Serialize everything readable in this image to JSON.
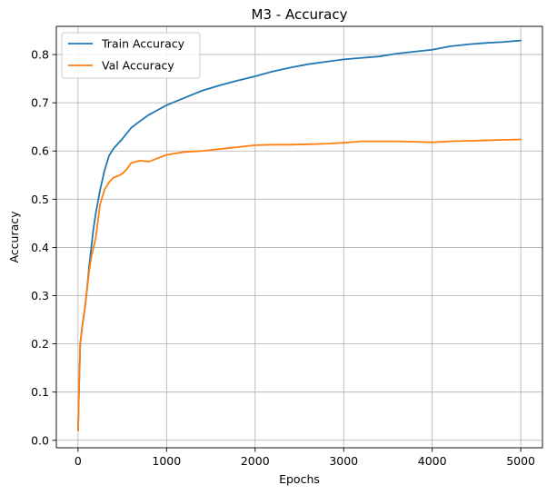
{
  "chart_data": {
    "type": "line",
    "title": "M3 - Accuracy",
    "xlabel": "Epochs",
    "ylabel": "Accuracy",
    "xlim": [
      -245,
      5245
    ],
    "ylim": [
      -0.0155,
      0.8585
    ],
    "xticks": [
      0,
      1000,
      2000,
      3000,
      4000,
      5000
    ],
    "yticks": [
      0.0,
      0.1,
      0.2,
      0.3,
      0.4,
      0.5,
      0.6,
      0.7,
      0.8
    ],
    "xtick_labels": [
      "0",
      "1000",
      "2000",
      "3000",
      "4000",
      "5000"
    ],
    "ytick_labels": [
      "0.0",
      "0.1",
      "0.2",
      "0.3",
      "0.4",
      "0.5",
      "0.6",
      "0.7",
      "0.8"
    ],
    "grid": true,
    "legend_position": "top-left",
    "series": [
      {
        "name": "Train Accuracy",
        "color": "#1f77b4",
        "x": [
          1,
          10,
          25,
          50,
          75,
          100,
          125,
          150,
          175,
          200,
          250,
          300,
          350,
          400,
          450,
          500,
          600,
          700,
          800,
          900,
          1000,
          1200,
          1400,
          1600,
          1800,
          2000,
          2200,
          2400,
          2600,
          2800,
          3000,
          3200,
          3400,
          3600,
          3800,
          4000,
          4200,
          4400,
          4600,
          4800,
          5000
        ],
        "y": [
          0.02,
          0.1,
          0.2,
          0.24,
          0.27,
          0.31,
          0.36,
          0.4,
          0.44,
          0.47,
          0.52,
          0.56,
          0.59,
          0.605,
          0.615,
          0.625,
          0.648,
          0.662,
          0.675,
          0.685,
          0.695,
          0.71,
          0.725,
          0.736,
          0.746,
          0.755,
          0.765,
          0.773,
          0.78,
          0.785,
          0.79,
          0.793,
          0.796,
          0.802,
          0.806,
          0.81,
          0.817,
          0.821,
          0.824,
          0.826,
          0.829
        ]
      },
      {
        "name": "Val Accuracy",
        "color": "#ff7f0e",
        "x": [
          1,
          10,
          25,
          50,
          75,
          100,
          125,
          150,
          175,
          200,
          250,
          300,
          350,
          400,
          450,
          500,
          550,
          600,
          700,
          800,
          900,
          1000,
          1200,
          1400,
          1600,
          1800,
          2000,
          2200,
          2400,
          2600,
          2800,
          3000,
          3200,
          3400,
          3600,
          3800,
          4000,
          4200,
          4400,
          4600,
          4800,
          5000
        ],
        "y": [
          0.02,
          0.1,
          0.2,
          0.24,
          0.27,
          0.31,
          0.35,
          0.38,
          0.4,
          0.42,
          0.49,
          0.52,
          0.535,
          0.545,
          0.548,
          0.553,
          0.562,
          0.575,
          0.58,
          0.578,
          0.585,
          0.592,
          0.598,
          0.6,
          0.604,
          0.608,
          0.612,
          0.613,
          0.613,
          0.614,
          0.615,
          0.617,
          0.62,
          0.62,
          0.62,
          0.619,
          0.618,
          0.62,
          0.621,
          0.622,
          0.623,
          0.624
        ]
      }
    ]
  }
}
